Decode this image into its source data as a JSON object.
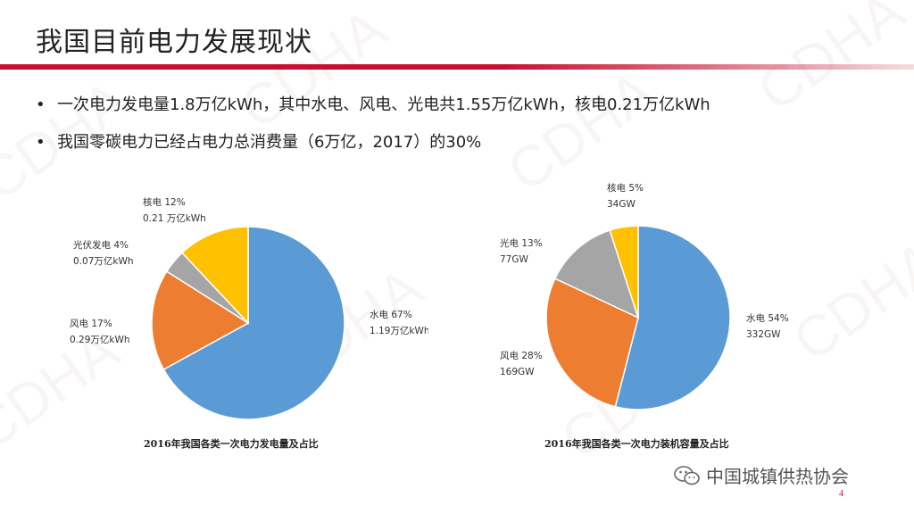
{
  "slide": {
    "title": "我国目前电力发展现状",
    "bullets": [
      "一次电力发电量1.8万亿kWh，其中水电、风电、光电共1.55万亿kWh，核电0.21万亿kWh",
      "我国零碳电力已经占电力总消费量（6万亿，2017）的30%"
    ],
    "bullet_glyph": "•",
    "page_number": "4",
    "footer_brand": "中国城镇供热协会",
    "watermark_text": "CDHA",
    "colors": {
      "accent": "#c8102e",
      "blue": "#5b9bd5",
      "orange": "#ed7d31",
      "gray": "#a5a5a5",
      "yellow": "#ffc000"
    }
  },
  "chart_data": [
    {
      "type": "pie",
      "title": "2016年我国各类一次电力发电量及占比",
      "slices": [
        {
          "name": "水电",
          "percent": 67,
          "value_label": "1.19万亿kWh",
          "color": "#5b9bd5"
        },
        {
          "name": "风电",
          "percent": 17,
          "value_label": "0.29万亿kWh",
          "color": "#ed7d31"
        },
        {
          "name": "光伏发电",
          "percent": 4,
          "value_label": "0.07万亿kWh",
          "color": "#a5a5a5"
        },
        {
          "name": "核电",
          "percent": 12,
          "value_label": "0.21 万亿kWh",
          "color": "#ffc000"
        }
      ]
    },
    {
      "type": "pie",
      "title": "2016年我国各类一次电力装机容量及占比",
      "slices": [
        {
          "name": "水电",
          "percent": 54,
          "value_label": "332GW",
          "color": "#5b9bd5"
        },
        {
          "name": "风电",
          "percent": 28,
          "value_label": "169GW",
          "color": "#ed7d31"
        },
        {
          "name": "光电",
          "percent": 13,
          "value_label": "77GW",
          "color": "#a5a5a5"
        },
        {
          "name": "核电",
          "percent": 5,
          "value_label": "34GW",
          "color": "#ffc000"
        }
      ]
    }
  ]
}
